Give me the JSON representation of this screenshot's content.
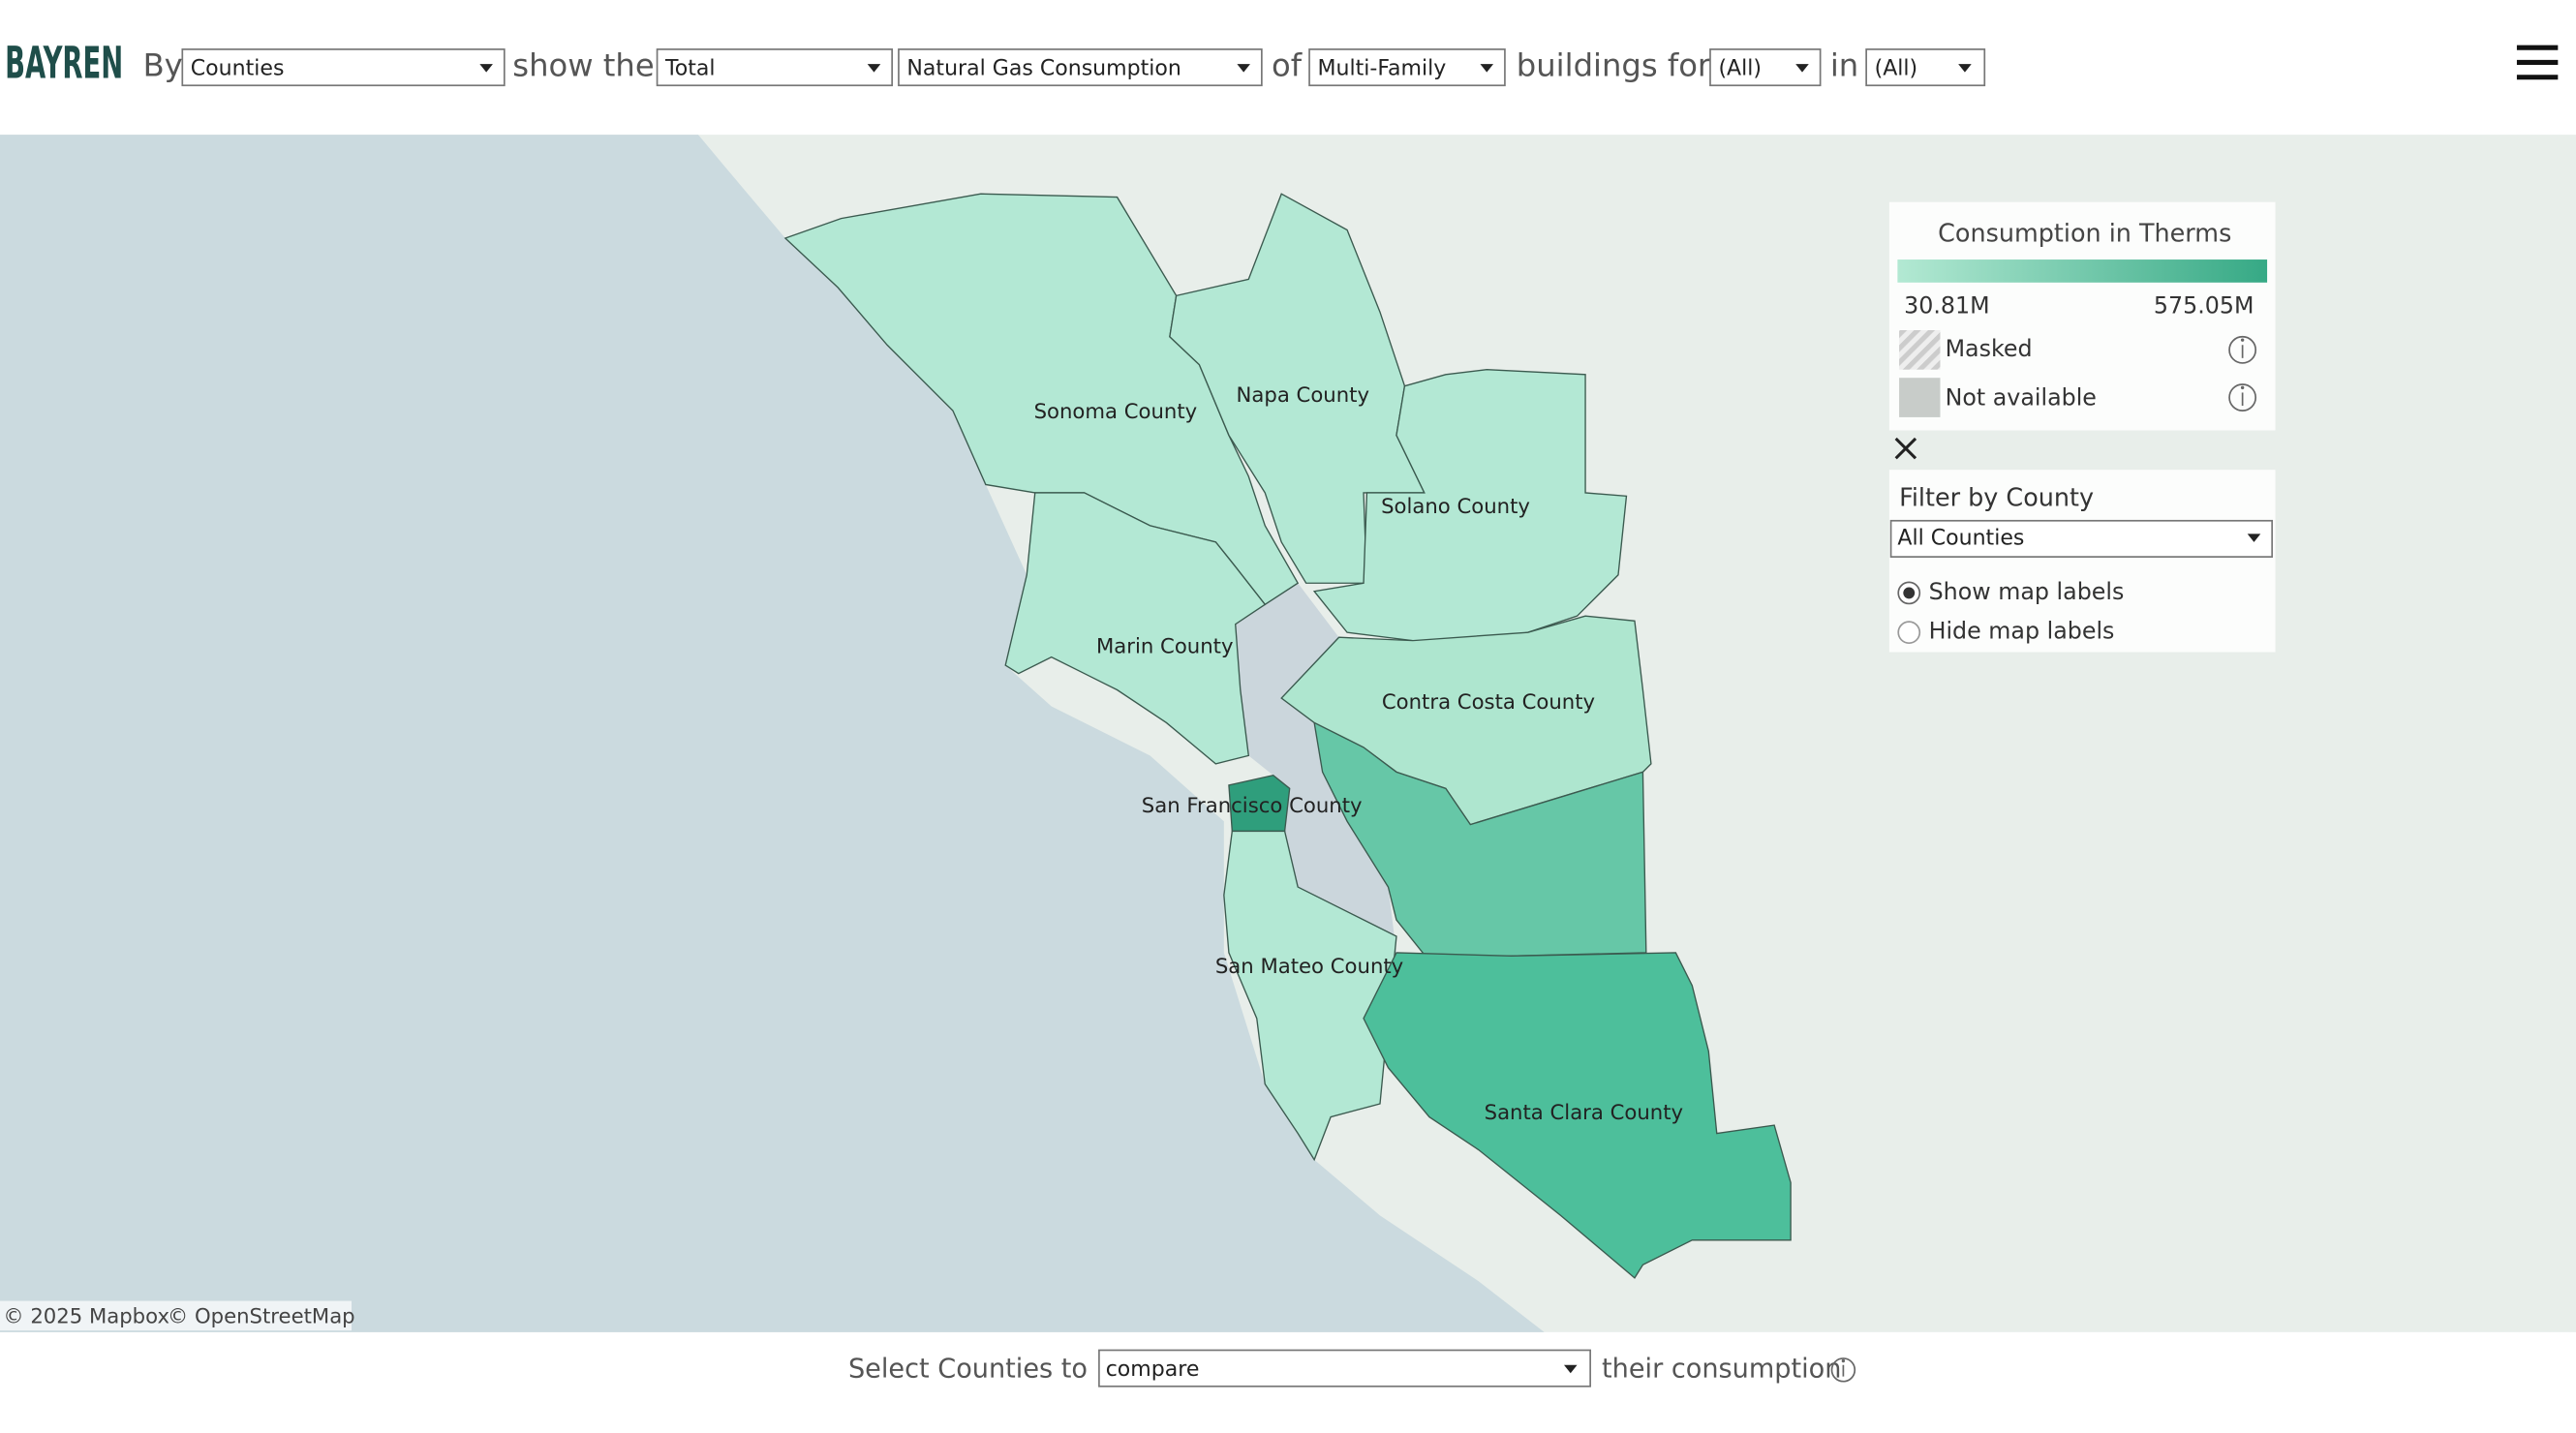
{
  "header": {
    "logo": "BAYREN",
    "by": "By",
    "level": "Counties",
    "show_the": "show the",
    "measure": "Total",
    "metric": "Natural Gas Consumption",
    "of": "of",
    "building_type": "Multi-Family",
    "buildings_for": "buildings for",
    "filter1": "(All)",
    "in": "in",
    "filter2": "(All)"
  },
  "legend": {
    "title": "Consumption in Therms",
    "min": "30.81M",
    "max": "575.05M",
    "masked": "Masked",
    "not_available": "Not available"
  },
  "filter": {
    "title": "Filter by County",
    "selected": "All Counties",
    "options": [
      "Show map labels",
      "Hide map labels"
    ]
  },
  "map": {
    "labels": [
      "Sonoma County",
      "Napa County",
      "Solano County",
      "Marin County",
      "Contra Costa County",
      "San Francisco County",
      "San Mateo County",
      "Santa Clara County"
    ],
    "attribution": [
      "© 2025 Mapbox",
      "© OpenStreetMap"
    ]
  },
  "footer": {
    "prefix": "Select Counties to",
    "selected": "compare",
    "suffix": "their consumption"
  }
}
